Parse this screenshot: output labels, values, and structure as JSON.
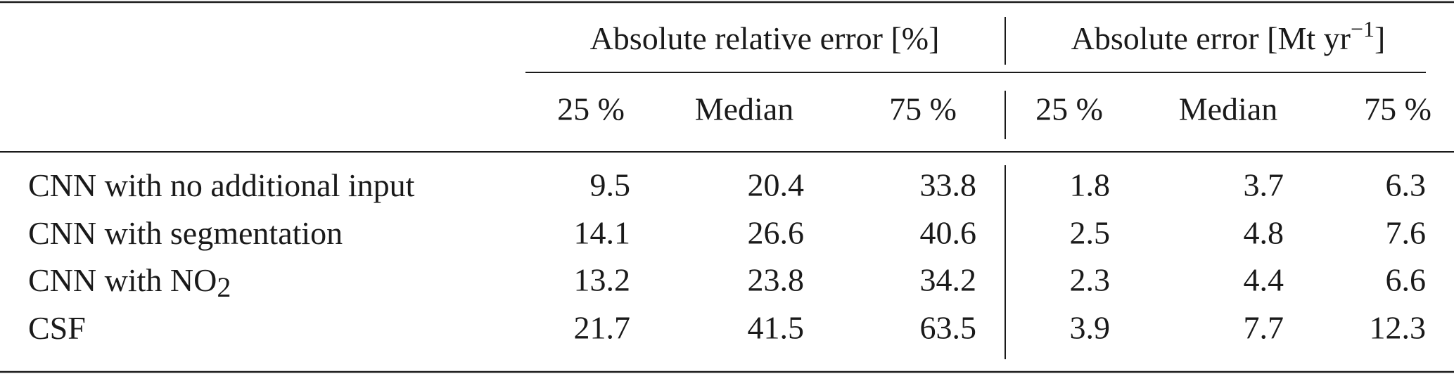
{
  "table": {
    "group_headers": [
      {
        "text": "Absolute relative error [%]"
      },
      {
        "text": "Absolute error [Mt yr",
        "sup": "−1",
        "end": "]"
      }
    ],
    "sub_headers": [
      "25 %",
      "Median",
      "75 %",
      "25 %",
      "Median",
      "75 %"
    ],
    "rows": [
      {
        "label": {
          "text": "CNN with no additional input"
        },
        "cells": [
          "9.5",
          "20.4",
          "33.8",
          "1.8",
          "3.7",
          "6.3"
        ]
      },
      {
        "label": {
          "text": "CNN with segmentation"
        },
        "cells": [
          "14.1",
          "26.6",
          "40.6",
          "2.5",
          "4.8",
          "7.6"
        ]
      },
      {
        "label": {
          "text": "CNN with NO",
          "sub": "2"
        },
        "cells": [
          "13.2",
          "23.8",
          "34.2",
          "2.3",
          "4.4",
          "6.6"
        ]
      },
      {
        "label": {
          "text": "CSF"
        },
        "cells": [
          "21.7",
          "41.5",
          "63.5",
          "3.9",
          "7.7",
          "12.3"
        ]
      }
    ]
  }
}
